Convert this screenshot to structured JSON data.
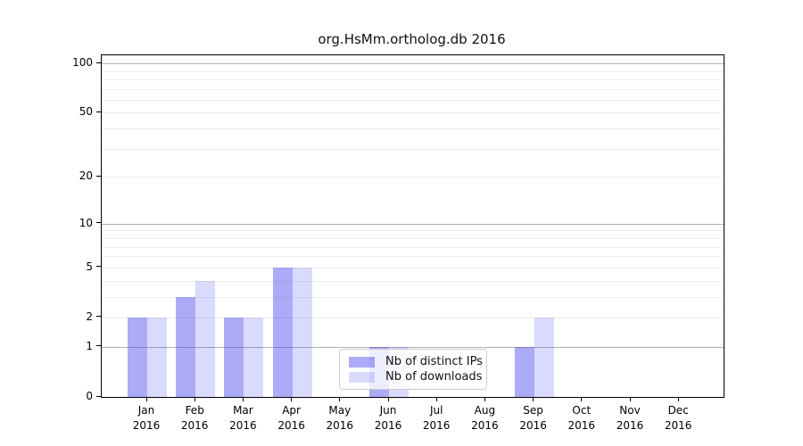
{
  "chart_data": {
    "type": "bar",
    "title": "org.HsMm.ortholog.db 2016",
    "categories": [
      "Jan 2016",
      "Feb 2016",
      "Mar 2016",
      "Apr 2016",
      "May 2016",
      "Jun 2016",
      "Jul 2016",
      "Aug 2016",
      "Sep 2016",
      "Oct 2016",
      "Nov 2016",
      "Dec 2016"
    ],
    "series": [
      {
        "name": "Nb of distinct IPs",
        "color": "rgba(68,68,238,0.45)",
        "values": [
          2,
          3,
          2,
          5,
          0,
          1,
          0,
          0,
          1,
          0,
          0,
          0
        ]
      },
      {
        "name": "Nb of downloads",
        "color": "rgba(68,68,238,0.20)",
        "values": [
          2,
          4,
          2,
          5,
          0,
          1,
          0,
          0,
          2,
          0,
          0,
          0
        ]
      }
    ],
    "xlabel": "",
    "ylabel": "",
    "yscale": "log1p",
    "ylim": [
      0,
      112
    ],
    "yticks": [
      0,
      1,
      2,
      5,
      10,
      20,
      50,
      100
    ],
    "grid": {
      "major_lines": [
        1,
        10,
        100
      ],
      "minor_lines": [
        2,
        3,
        4,
        5,
        6,
        7,
        8,
        9,
        20,
        30,
        40,
        50,
        60,
        70,
        80,
        90
      ]
    },
    "legend_position": "lower center inside plot",
    "colors": {
      "spine": "#000000",
      "major_grid": "#b0b0b0",
      "minor_grid": "#ececec",
      "text": "#111111",
      "background": "#ffffff"
    }
  }
}
